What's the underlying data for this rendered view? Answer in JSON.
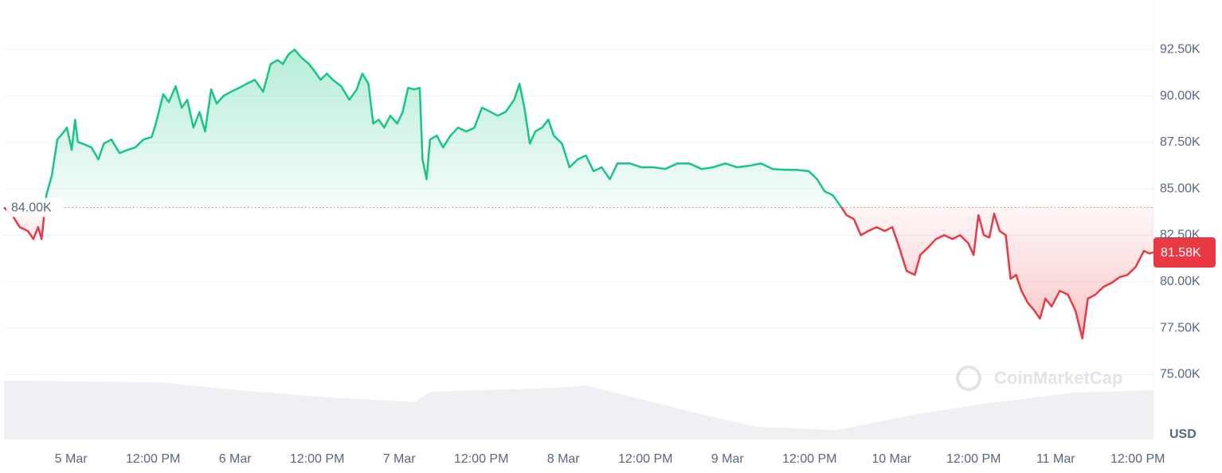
{
  "chart_data": {
    "type": "line",
    "currency": "USD",
    "watermark": "CoinMarketCap",
    "color_up": "#16c784",
    "color_down": "#ea3943",
    "grid": true,
    "baseline": {
      "value": 84000,
      "label": "84.00K"
    },
    "current": {
      "value": 81580,
      "label": "81.58K"
    },
    "xlim": [
      -9.8,
      158.3
    ],
    "xticks": [
      {
        "value": 0,
        "label": "5 Mar"
      },
      {
        "value": 12,
        "label": "12:00 PM"
      },
      {
        "value": 24,
        "label": "6 Mar"
      },
      {
        "value": 36,
        "label": "12:00 PM"
      },
      {
        "value": 48,
        "label": "7 Mar"
      },
      {
        "value": 60,
        "label": "12:00 PM"
      },
      {
        "value": 72,
        "label": "8 Mar"
      },
      {
        "value": 84,
        "label": "12:00 PM"
      },
      {
        "value": 96,
        "label": "9 Mar"
      },
      {
        "value": 108,
        "label": "12:00 PM"
      },
      {
        "value": 120,
        "label": "10 Mar"
      },
      {
        "value": 132,
        "label": "12:00 PM"
      },
      {
        "value": 144,
        "label": "11 Mar"
      },
      {
        "value": 156,
        "label": "12:00 PM"
      }
    ],
    "ylim": [
      71500,
      95000
    ],
    "yticks": [
      {
        "value": 75000,
        "label": "75.00K"
      },
      {
        "value": 77500,
        "label": "77.50K"
      },
      {
        "value": 80000,
        "label": "80.00K"
      },
      {
        "value": 82500,
        "label": "82.50K"
      },
      {
        "value": 85000,
        "label": "85.00K"
      },
      {
        "value": 87500,
        "label": "87.50K"
      },
      {
        "value": 90000,
        "label": "90.00K"
      },
      {
        "value": 92500,
        "label": "92.50K"
      }
    ],
    "x": [
      -9.8,
      -8.6,
      -7.5,
      -6.3,
      -5.5,
      -4.8,
      -4.3,
      -3.6,
      -2.8,
      -2.0,
      -1.3,
      -0.6,
      0.1,
      0.6,
      1.0,
      2.2,
      3.0,
      4.0,
      4.8,
      5.9,
      7.1,
      8.3,
      9.4,
      10.6,
      11.8,
      12.4,
      13.5,
      14.3,
      15.3,
      16.2,
      17.0,
      17.9,
      18.8,
      19.6,
      20.5,
      21.3,
      22.3,
      23.4,
      24.6,
      25.7,
      26.9,
      28.1,
      29.2,
      30.2,
      31.0,
      31.8,
      32.7,
      33.7,
      34.8,
      35.7,
      36.5,
      37.4,
      38.3,
      39.5,
      40.7,
      41.8,
      42.6,
      43.5,
      44.2,
      45.0,
      45.8,
      46.7,
      47.7,
      48.5,
      49.3,
      50.2,
      51.0,
      51.4,
      52.0,
      52.5,
      53.5,
      54.4,
      55.5,
      56.6,
      57.8,
      59.0,
      60.1,
      61.3,
      62.4,
      63.6,
      64.8,
      65.6,
      66.3,
      67.1,
      67.9,
      68.9,
      69.8,
      70.6,
      71.8,
      72.9,
      74.1,
      75.3,
      76.4,
      77.6,
      78.8,
      79.9,
      81.7,
      83.4,
      85.2,
      86.9,
      88.7,
      90.4,
      92.2,
      93.9,
      95.7,
      97.4,
      99.1,
      100.9,
      102.6,
      104.4,
      106.1,
      107.9,
      109.1,
      110.2,
      111.4,
      112.5,
      113.4,
      114.5,
      115.5,
      116.6,
      117.8,
      119.0,
      120.1,
      121.1,
      122.2,
      123.4,
      124.2,
      125.4,
      126.5,
      127.7,
      128.9,
      130.0,
      131.2,
      132.0,
      132.7,
      133.5,
      134.3,
      135.0,
      135.8,
      136.7,
      137.4,
      138.2,
      139.0,
      139.9,
      140.9,
      141.7,
      142.5,
      143.4,
      144.6,
      145.8,
      146.9,
      147.9,
      148.7,
      149.8,
      151.0,
      152.2,
      153.3,
      154.5,
      155.7,
      156.9,
      157.7,
      158.3
    ],
    "values": [
      84000,
      83590,
      82940,
      82730,
      82300,
      82940,
      82300,
      84660,
      85730,
      87660,
      87960,
      88300,
      87100,
      88730,
      87530,
      87360,
      87230,
      86590,
      87440,
      87660,
      86930,
      87100,
      87230,
      87660,
      87790,
      88510,
      90100,
      89670,
      90530,
      89370,
      89800,
      88300,
      89140,
      88090,
      90360,
      89590,
      90010,
      90230,
      90440,
      90660,
      90870,
      90230,
      91730,
      91940,
      91730,
      92240,
      92500,
      92070,
      91730,
      91300,
      90870,
      91210,
      90870,
      90530,
      89800,
      90360,
      91210,
      90660,
      88510,
      88730,
      88300,
      88940,
      88510,
      89140,
      90440,
      90360,
      90440,
      86590,
      85520,
      87660,
      87870,
      87230,
      87870,
      88300,
      88090,
      88300,
      89370,
      89160,
      88940,
      89160,
      89800,
      90660,
      89370,
      87440,
      88090,
      88300,
      88730,
      87870,
      87440,
      86160,
      86590,
      86800,
      85950,
      86160,
      85520,
      86370,
      86370,
      86160,
      86160,
      86070,
      86370,
      86370,
      86070,
      86160,
      86370,
      86160,
      86240,
      86370,
      86070,
      86030,
      86030,
      85950,
      85520,
      84870,
      84660,
      84100,
      83590,
      83370,
      82510,
      82730,
      82940,
      82730,
      82940,
      81870,
      80580,
      80370,
      81440,
      81870,
      82300,
      82510,
      82300,
      82510,
      82080,
      81440,
      83590,
      82510,
      82380,
      83670,
      82730,
      82510,
      80150,
      80370,
      79510,
      78870,
      78440,
      78010,
      79090,
      78660,
      79510,
      79300,
      78440,
      76940,
      79090,
      79300,
      79730,
      79940,
      80240,
      80370,
      80800,
      81660,
      81520,
      81580
    ]
  }
}
